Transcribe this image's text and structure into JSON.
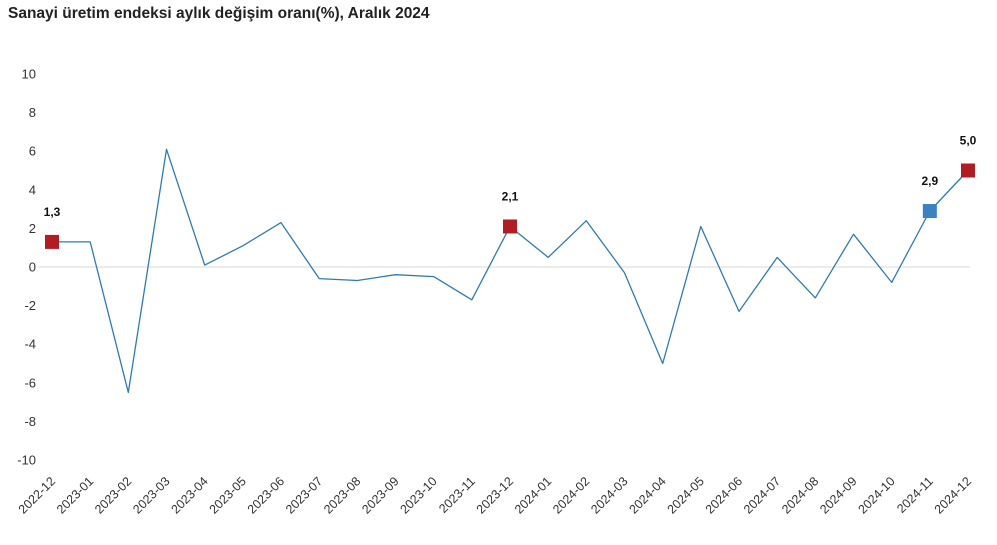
{
  "chart_data": {
    "type": "line",
    "title": "Sanayi üretim endeksi aylık değişim oranı(%), Aralık 2024",
    "xlabel": "",
    "ylabel": "",
    "ylim": [
      -10,
      10
    ],
    "yticks": [
      "10",
      "8",
      "6",
      "4",
      "2",
      "0",
      "-2",
      "-4",
      "-6",
      "-8",
      "-10"
    ],
    "yticks_values": [
      10,
      8,
      6,
      4,
      2,
      0,
      -2,
      -4,
      -6,
      -8,
      -10
    ],
    "grid": false,
    "legend": "none",
    "categories": [
      "2022-12",
      "2023-01",
      "2023-02",
      "2023-03",
      "2023-04",
      "2023-05",
      "2023-06",
      "2023-07",
      "2023-08",
      "2023-09",
      "2023-10",
      "2023-11",
      "2023-12",
      "2024-01",
      "2024-02",
      "2024-03",
      "2024-04",
      "2024-05",
      "2024-06",
      "2024-07",
      "2024-08",
      "2024-09",
      "2024-10",
      "2024-11",
      "2024-12"
    ],
    "series": [
      {
        "values": [
          1.3,
          1.3,
          -6.5,
          6.1,
          0.1,
          1.1,
          2.3,
          -0.6,
          -0.7,
          -0.4,
          -0.5,
          -1.7,
          2.1,
          0.5,
          2.4,
          -0.3,
          -5.0,
          2.1,
          -2.3,
          0.5,
          -1.6,
          1.7,
          -0.8,
          2.9,
          5.0
        ],
        "color": "#2e7bb4"
      }
    ],
    "highlights": [
      {
        "index": 0,
        "label": "1,3",
        "color": "#b01e24"
      },
      {
        "index": 12,
        "label": "2,1",
        "color": "#b01e24"
      },
      {
        "index": 23,
        "label": "2,9",
        "color": "#3a82c4"
      },
      {
        "index": 24,
        "label": "5,0",
        "color": "#b01e24"
      }
    ],
    "zero_line_color": "#d9d9d9"
  }
}
